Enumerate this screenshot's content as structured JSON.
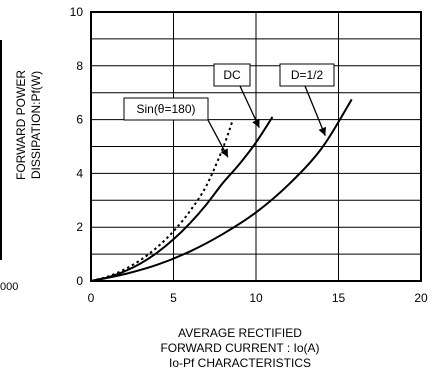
{
  "cut_edge_text": "000",
  "chart_data": {
    "type": "line",
    "xlabel": "AVERAGE RECTIFIED FORWARD CURRENT : Io(A)",
    "xlabel_lines": [
      "AVERAGE RECTIFIED",
      "FORWARD CURRENT : Io(A)"
    ],
    "ylabel": "FORWARD POWER DISSIPATION:Pf(W)",
    "ylabel_lines": [
      "FORWARD POWER",
      "DISSIPATION:Pf(W)"
    ],
    "caption": "Io-Pf CHARACTERISTICS",
    "xlim": [
      0,
      20
    ],
    "ylim": [
      0,
      10
    ],
    "xticks": [
      0,
      5,
      10,
      15,
      20
    ],
    "yticks": [
      0,
      2,
      4,
      6,
      8,
      10
    ],
    "grid": true,
    "series": [
      {
        "name": "Sin(θ=180)",
        "style": "dotted",
        "x": [
          0,
          1,
          2,
          3,
          4,
          5,
          6,
          7,
          8,
          8.6
        ],
        "y": [
          0,
          0.16,
          0.42,
          0.78,
          1.25,
          1.85,
          2.6,
          3.55,
          4.95,
          6.0
        ]
      },
      {
        "name": "DC",
        "style": "solid",
        "x": [
          0,
          1,
          2,
          3,
          4,
          5,
          6,
          7,
          8,
          9,
          10,
          11
        ],
        "y": [
          0,
          0.13,
          0.35,
          0.65,
          1.05,
          1.55,
          2.15,
          2.85,
          3.65,
          4.35,
          5.15,
          6.1
        ]
      },
      {
        "name": "D=1/2",
        "style": "solid",
        "x": [
          0,
          2,
          4,
          6,
          8,
          10,
          12,
          14,
          15.8
        ],
        "y": [
          0,
          0.25,
          0.6,
          1.1,
          1.75,
          2.55,
          3.6,
          4.95,
          6.75
        ]
      }
    ],
    "annotations": [
      {
        "text": "Sin(θ=180)",
        "points_to": [
          8.3,
          4.6
        ]
      },
      {
        "text": "DC",
        "points_to": [
          10.2,
          5.7
        ]
      },
      {
        "text": "D=1/2",
        "points_to": [
          14.2,
          5.4
        ]
      }
    ]
  }
}
